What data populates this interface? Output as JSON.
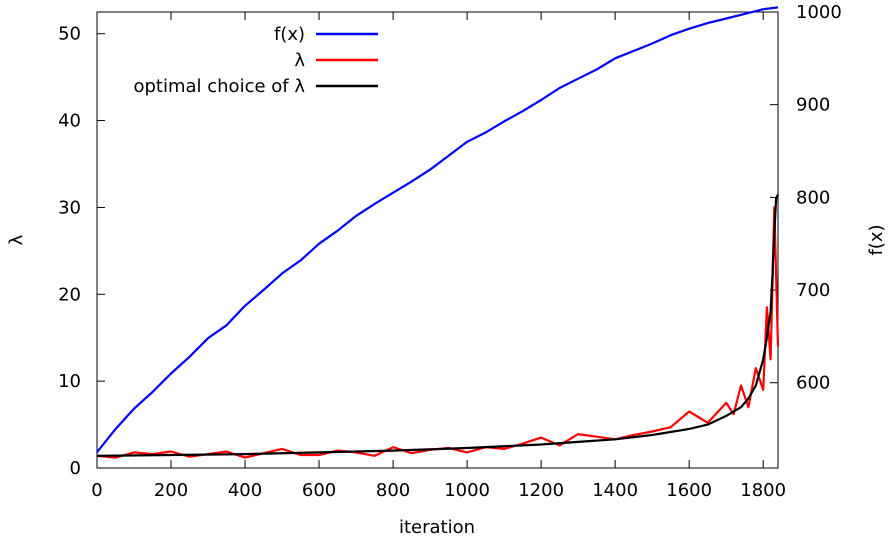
{
  "chart_data": {
    "type": "line",
    "xlabel": "iteration",
    "ylabel_left": "λ",
    "ylabel_right": "f(x)",
    "xlim": [
      0,
      1840
    ],
    "ylim_left": [
      0,
      52.5
    ],
    "ylim_right": [
      508,
      1000
    ],
    "xticks": [
      0,
      200,
      400,
      600,
      800,
      1000,
      1200,
      1400,
      1600,
      1800
    ],
    "yticks_left": [
      0,
      10,
      20,
      30,
      40,
      50
    ],
    "yticks_right": [
      600,
      700,
      800,
      900,
      1000
    ],
    "legend_position": "top-right",
    "colors": {
      "fx": "#0000ff",
      "lambda": "#ff0000",
      "optimal": "#000000"
    },
    "series": [
      {
        "name": "f(x)",
        "axis": "right",
        "color": "#0000ff",
        "x": [
          0,
          50,
          100,
          150,
          200,
          250,
          300,
          350,
          400,
          450,
          500,
          550,
          600,
          650,
          700,
          750,
          800,
          850,
          900,
          950,
          1000,
          1050,
          1100,
          1150,
          1200,
          1250,
          1300,
          1350,
          1400,
          1450,
          1500,
          1550,
          1600,
          1650,
          1700,
          1750,
          1800,
          1840
        ],
        "y": [
          525,
          550,
          572,
          590,
          610,
          628,
          648,
          662,
          683,
          700,
          718,
          732,
          750,
          764,
          780,
          793,
          805,
          817,
          830,
          845,
          860,
          870,
          882,
          893,
          905,
          918,
          928,
          938,
          950,
          958,
          966,
          975,
          982,
          988,
          993,
          998,
          1003,
          1005
        ]
      },
      {
        "name": "λ",
        "axis": "left",
        "color": "#ff0000",
        "x": [
          0,
          50,
          100,
          150,
          200,
          250,
          300,
          350,
          400,
          450,
          500,
          550,
          600,
          650,
          700,
          750,
          800,
          850,
          900,
          950,
          1000,
          1050,
          1100,
          1150,
          1200,
          1250,
          1300,
          1350,
          1400,
          1450,
          1500,
          1550,
          1600,
          1650,
          1700,
          1720,
          1740,
          1760,
          1780,
          1800,
          1810,
          1820,
          1830,
          1840
        ],
        "y": [
          1.4,
          1.2,
          1.8,
          1.6,
          1.9,
          1.3,
          1.6,
          1.9,
          1.2,
          1.7,
          2.2,
          1.5,
          1.5,
          2.0,
          1.8,
          1.4,
          2.4,
          1.7,
          2.1,
          2.3,
          1.8,
          2.4,
          2.2,
          2.8,
          3.5,
          2.6,
          3.9,
          3.6,
          3.3,
          3.8,
          4.2,
          4.7,
          6.5,
          5.2,
          7.5,
          6.2,
          9.5,
          7.0,
          11.5,
          9.0,
          18.5,
          12.5,
          30.0,
          14.0
        ]
      },
      {
        "name": "optimal choice of λ",
        "axis": "left",
        "color": "#000000",
        "x": [
          0,
          200,
          400,
          600,
          800,
          1000,
          1200,
          1300,
          1400,
          1500,
          1600,
          1650,
          1700,
          1740,
          1760,
          1780,
          1790,
          1800,
          1810,
          1820,
          1825,
          1830,
          1835,
          1840
        ],
        "y": [
          1.4,
          1.5,
          1.6,
          1.8,
          2.0,
          2.3,
          2.7,
          3.0,
          3.3,
          3.8,
          4.5,
          5.0,
          6.0,
          7.0,
          8.0,
          9.5,
          11.0,
          12.5,
          15.0,
          18.0,
          22.0,
          27.0,
          31.0,
          31.5
        ]
      }
    ]
  }
}
